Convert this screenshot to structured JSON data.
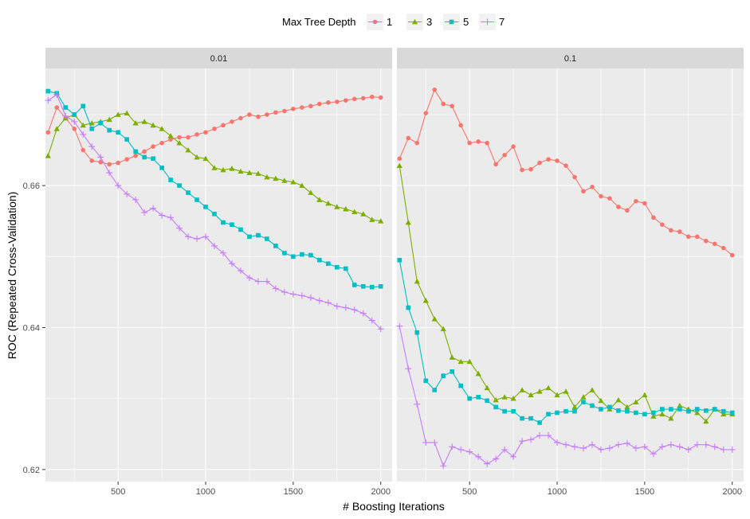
{
  "chart_data": {
    "type": "line",
    "legend": {
      "title": "Max Tree Depth",
      "position": "top"
    },
    "xlabel": "# Boosting Iterations",
    "ylabel": "ROC (Repeated Cross-Validation)",
    "xlim": [
      85,
      2065
    ],
    "ylim": [
      0.6183,
      0.6765
    ],
    "x_ticks": [
      500,
      1000,
      1500,
      2000
    ],
    "y_ticks": [
      0.62,
      0.64,
      0.66
    ],
    "y_tick_labels": [
      "0.62",
      "0.64",
      "0.66"
    ],
    "x_tick_labels": [
      "500",
      "1000",
      "1500",
      "2000"
    ],
    "grid": true,
    "colors": {
      "1": "#F8766D",
      "3": "#7CAE00",
      "5": "#00BFC4",
      "7": "#C77CFF"
    },
    "x": [
      100,
      150,
      200,
      250,
      300,
      350,
      400,
      450,
      500,
      550,
      600,
      650,
      700,
      750,
      800,
      850,
      900,
      950,
      1000,
      1050,
      1100,
      1150,
      1200,
      1250,
      1300,
      1350,
      1400,
      1450,
      1500,
      1550,
      1600,
      1650,
      1700,
      1750,
      1800,
      1850,
      1900,
      1950,
      2000
    ],
    "panels": [
      {
        "label": "0.01",
        "series": [
          {
            "name": "1",
            "marker": "circle",
            "values": [
              0.6675,
              0.671,
              0.6695,
              0.668,
              0.665,
              0.6635,
              0.6633,
              0.663,
              0.6632,
              0.6637,
              0.6642,
              0.6648,
              0.6655,
              0.666,
              0.6665,
              0.6668,
              0.6668,
              0.6672,
              0.6675,
              0.668,
              0.6685,
              0.669,
              0.6695,
              0.67,
              0.6697,
              0.67,
              0.6703,
              0.6705,
              0.6708,
              0.671,
              0.6712,
              0.6715,
              0.6717,
              0.6718,
              0.672,
              0.6722,
              0.6723,
              0.6725,
              0.6724
            ]
          },
          {
            "name": "3",
            "marker": "triangle",
            "values": [
              0.6642,
              0.668,
              0.6695,
              0.67,
              0.6685,
              0.6688,
              0.669,
              0.6693,
              0.67,
              0.6702,
              0.6688,
              0.669,
              0.6685,
              0.668,
              0.667,
              0.666,
              0.665,
              0.664,
              0.6638,
              0.6625,
              0.6622,
              0.6624,
              0.662,
              0.6618,
              0.6617,
              0.6612,
              0.661,
              0.6607,
              0.6605,
              0.66,
              0.659,
              0.658,
              0.6575,
              0.657,
              0.6567,
              0.6563,
              0.656,
              0.6552,
              0.655
            ]
          },
          {
            "name": "5",
            "marker": "square",
            "values": [
              0.6733,
              0.673,
              0.671,
              0.67,
              0.6712,
              0.668,
              0.6688,
              0.6678,
              0.6675,
              0.6665,
              0.6648,
              0.664,
              0.6638,
              0.6625,
              0.6608,
              0.66,
              0.659,
              0.658,
              0.657,
              0.656,
              0.6548,
              0.6545,
              0.6538,
              0.6528,
              0.653,
              0.6525,
              0.6515,
              0.6505,
              0.65,
              0.6503,
              0.6502,
              0.6495,
              0.649,
              0.6485,
              0.6483,
              0.646,
              0.6458,
              0.6457,
              0.6458
            ]
          },
          {
            "name": "7",
            "marker": "plus",
            "values": [
              0.672,
              0.6728,
              0.6698,
              0.669,
              0.6672,
              0.6655,
              0.664,
              0.6618,
              0.66,
              0.6588,
              0.658,
              0.6562,
              0.6568,
              0.6558,
              0.6555,
              0.654,
              0.6528,
              0.6525,
              0.6528,
              0.6515,
              0.6505,
              0.649,
              0.648,
              0.647,
              0.6465,
              0.6465,
              0.6455,
              0.645,
              0.6447,
              0.6445,
              0.6442,
              0.6438,
              0.6435,
              0.643,
              0.6428,
              0.6425,
              0.642,
              0.641,
              0.6398
            ]
          }
        ]
      },
      {
        "label": "0.1",
        "series": [
          {
            "name": "1",
            "marker": "circle",
            "values": [
              0.6638,
              0.6667,
              0.666,
              0.6702,
              0.6735,
              0.6715,
              0.6712,
              0.6685,
              0.666,
              0.6662,
              0.666,
              0.663,
              0.6643,
              0.6655,
              0.6622,
              0.6623,
              0.6632,
              0.6637,
              0.6635,
              0.6628,
              0.6612,
              0.6592,
              0.6598,
              0.6585,
              0.6582,
              0.657,
              0.6565,
              0.6578,
              0.6575,
              0.6555,
              0.6545,
              0.6537,
              0.6535,
              0.6528,
              0.6528,
              0.6522,
              0.6518,
              0.6512,
              0.6502
            ]
          },
          {
            "name": "3",
            "marker": "triangle",
            "values": [
              0.6628,
              0.6548,
              0.6465,
              0.6438,
              0.6412,
              0.6398,
              0.6358,
              0.6352,
              0.6352,
              0.6335,
              0.6315,
              0.6298,
              0.6302,
              0.63,
              0.6312,
              0.6305,
              0.631,
              0.6315,
              0.6305,
              0.631,
              0.6288,
              0.6302,
              0.6312,
              0.6297,
              0.6285,
              0.6298,
              0.6288,
              0.6295,
              0.6305,
              0.6275,
              0.6278,
              0.6272,
              0.629,
              0.6285,
              0.628,
              0.6268,
              0.6285,
              0.6278,
              0.6278
            ]
          },
          {
            "name": "5",
            "marker": "square",
            "values": [
              0.6495,
              0.6428,
              0.6393,
              0.6325,
              0.6312,
              0.6332,
              0.6338,
              0.6318,
              0.63,
              0.6302,
              0.6297,
              0.6288,
              0.6282,
              0.6282,
              0.6272,
              0.6272,
              0.6266,
              0.6278,
              0.628,
              0.6282,
              0.6282,
              0.6295,
              0.629,
              0.6285,
              0.6288,
              0.6283,
              0.6282,
              0.628,
              0.6278,
              0.628,
              0.6285,
              0.6285,
              0.6285,
              0.6282,
              0.6285,
              0.6283,
              0.6285,
              0.6282,
              0.628
            ]
          },
          {
            "name": "7",
            "marker": "plus",
            "values": [
              0.6402,
              0.6342,
              0.6292,
              0.6238,
              0.6238,
              0.6205,
              0.6232,
              0.6228,
              0.6225,
              0.6218,
              0.6208,
              0.6215,
              0.6228,
              0.6218,
              0.624,
              0.6242,
              0.6248,
              0.6248,
              0.6238,
              0.6235,
              0.6232,
              0.623,
              0.6235,
              0.6228,
              0.623,
              0.6235,
              0.6237,
              0.623,
              0.6232,
              0.6222,
              0.6232,
              0.6235,
              0.6232,
              0.6228,
              0.6235,
              0.6235,
              0.6232,
              0.6228,
              0.6228
            ]
          }
        ]
      }
    ]
  }
}
